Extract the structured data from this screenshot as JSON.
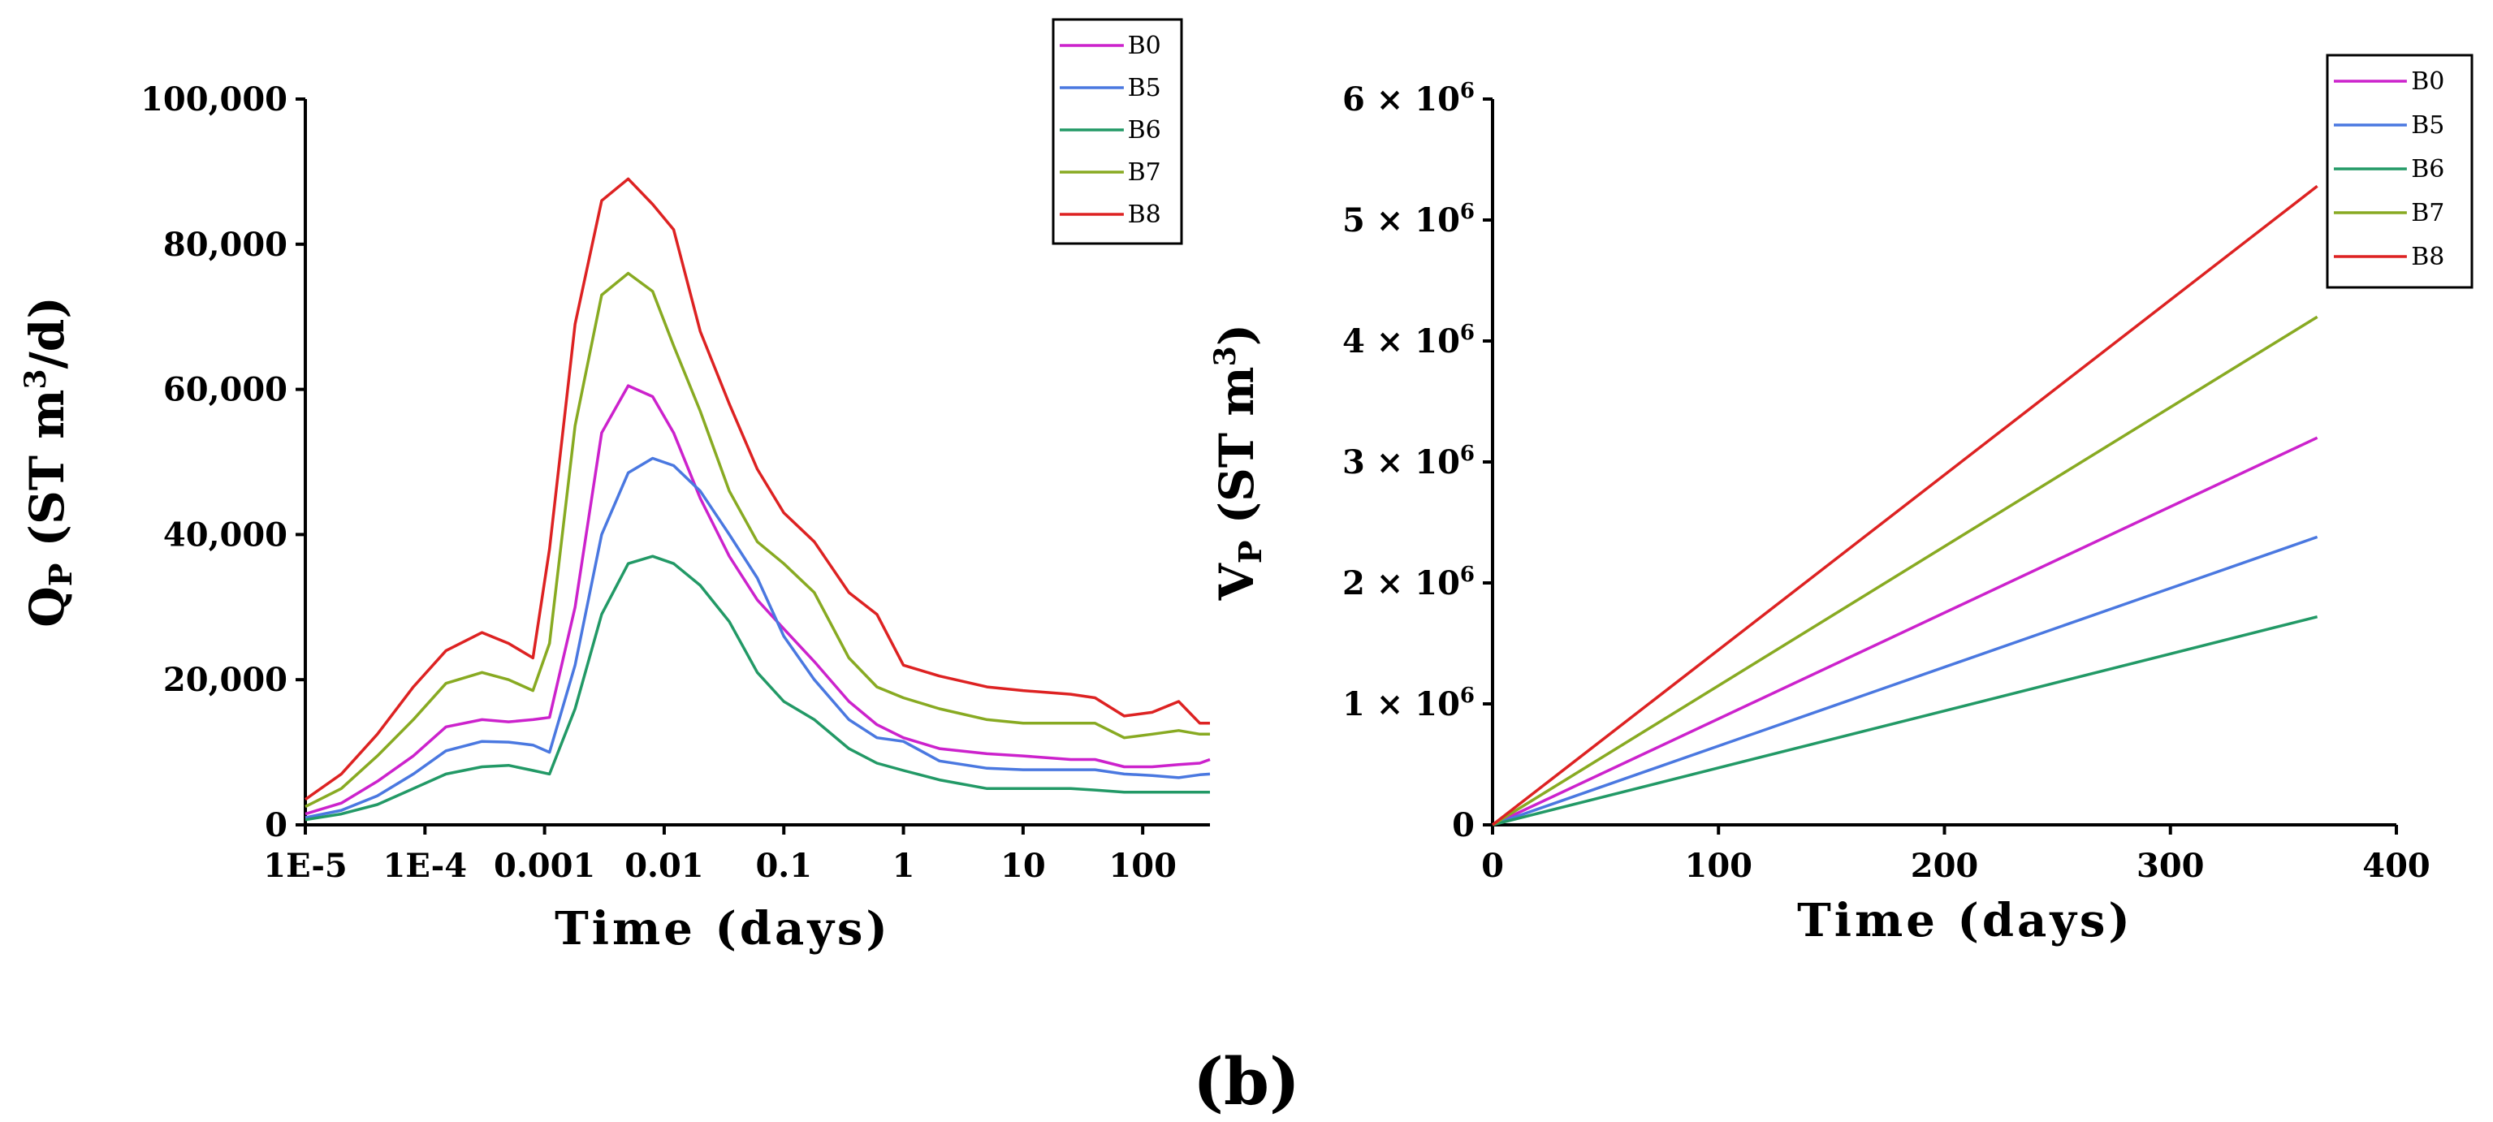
{
  "figure": {
    "caption": "(b)"
  },
  "chart_data": [
    {
      "type": "line",
      "id": "left",
      "xscale": "log",
      "x": [
        1e-05,
        2e-05,
        4e-05,
        8e-05,
        0.00015,
        0.0003,
        0.0005,
        0.0008,
        0.0011,
        0.0018,
        0.003,
        0.005,
        0.008,
        0.012,
        0.02,
        0.035,
        0.06,
        0.1,
        0.18,
        0.35,
        0.6,
        1,
        2,
        5,
        10,
        25,
        40,
        70,
        120,
        200,
        300,
        365
      ],
      "xlim": [
        1e-05,
        365
      ],
      "xticks": [
        1e-05,
        0.0001,
        0.001,
        0.01,
        0.1,
        1,
        10,
        100
      ],
      "xtick_labels": [
        "1E-5",
        "1E-4",
        "0.001",
        "0.01",
        "0.1",
        "1",
        "10",
        "100"
      ],
      "ylim": [
        0,
        100000
      ],
      "yticks": [
        0,
        20000,
        40000,
        60000,
        80000,
        100000
      ],
      "ytick_labels": [
        "0",
        "20,000",
        "40,000",
        "60,000",
        "80,000",
        "100,000"
      ],
      "ylabel": {
        "pre": "Q",
        "sub": "P",
        "mid": " (ST m",
        "sup": "3",
        "post": "/d)"
      },
      "xlabel": "Time (days)",
      "series": [
        {
          "name": "B0",
          "color": "#cc22cc",
          "values": [
            1500,
            3000,
            6000,
            9500,
            13500,
            14500,
            14200,
            14500,
            14800,
            30000,
            54000,
            60500,
            59000,
            54000,
            45000,
            37000,
            31000,
            27000,
            22500,
            17000,
            13800,
            12000,
            10500,
            9800,
            9500,
            9000,
            9000,
            8000,
            8000,
            8300,
            8500,
            9000
          ]
        },
        {
          "name": "B5",
          "color": "#4a78e0",
          "values": [
            1000,
            2000,
            4000,
            7000,
            10200,
            11500,
            11400,
            11000,
            10000,
            22000,
            40000,
            48500,
            50500,
            49500,
            46000,
            40000,
            34000,
            26000,
            20000,
            14500,
            12000,
            11500,
            8800,
            7800,
            7600,
            7600,
            7600,
            7000,
            6800,
            6500,
            6900,
            7000
          ]
        },
        {
          "name": "B6",
          "color": "#229966",
          "values": [
            700,
            1500,
            2800,
            5000,
            7000,
            8000,
            8200,
            7500,
            7000,
            16000,
            29000,
            36000,
            37000,
            36000,
            33000,
            28000,
            21000,
            17000,
            14500,
            10500,
            8500,
            7500,
            6200,
            5000,
            5000,
            5000,
            4800,
            4500,
            4500,
            4500,
            4500,
            4500
          ]
        },
        {
          "name": "B7",
          "color": "#88aa22",
          "values": [
            2500,
            5000,
            9500,
            14500,
            19500,
            21000,
            20000,
            18500,
            25000,
            55000,
            73000,
            76000,
            73500,
            66000,
            57000,
            46000,
            39000,
            36000,
            32000,
            23000,
            19000,
            17500,
            16000,
            14500,
            14000,
            14000,
            14000,
            12000,
            12500,
            13000,
            12500,
            12500
          ]
        },
        {
          "name": "B8",
          "color": "#dd2222",
          "values": [
            3500,
            7000,
            12500,
            19000,
            24000,
            26500,
            25000,
            23000,
            38000,
            69000,
            86000,
            89000,
            85500,
            82000,
            68000,
            58000,
            49000,
            43000,
            39000,
            32000,
            29000,
            22000,
            20500,
            19000,
            18500,
            18000,
            17500,
            15000,
            15500,
            17000,
            14000,
            14000
          ]
        }
      ],
      "legend": {
        "placement": "top-right",
        "entries": [
          "B0",
          "B5",
          "B6",
          "B7",
          "B8"
        ]
      }
    },
    {
      "type": "line",
      "id": "right",
      "xscale": "linear",
      "x": [
        0,
        365
      ],
      "xlim": [
        0,
        400
      ],
      "xticks": [
        0,
        100,
        200,
        300,
        400
      ],
      "xtick_labels": [
        "0",
        "100",
        "200",
        "300",
        "400"
      ],
      "ylim": [
        0,
        6000000
      ],
      "yticks": [
        0,
        1000000,
        2000000,
        3000000,
        4000000,
        5000000,
        6000000
      ],
      "ytick_labels": [
        {
          "coef": "0",
          "exp": ""
        },
        {
          "coef": "1 × 10",
          "exp": "6"
        },
        {
          "coef": "2 × 10",
          "exp": "6"
        },
        {
          "coef": "3 × 10",
          "exp": "6"
        },
        {
          "coef": "4 × 10",
          "exp": "6"
        },
        {
          "coef": "5 × 10",
          "exp": "6"
        },
        {
          "coef": "6 × 10",
          "exp": "6"
        }
      ],
      "ylabel": {
        "pre": "V",
        "sub": "P",
        "mid": " (ST m",
        "sup": "3",
        "post": ")"
      },
      "xlabel": "Time (days)",
      "series": [
        {
          "name": "B0",
          "color": "#cc22cc",
          "values": [
            0,
            3200000
          ]
        },
        {
          "name": "B5",
          "color": "#4a78e0",
          "values": [
            0,
            2380000
          ]
        },
        {
          "name": "B6",
          "color": "#229966",
          "values": [
            0,
            1720000
          ]
        },
        {
          "name": "B7",
          "color": "#88aa22",
          "values": [
            0,
            4200000
          ]
        },
        {
          "name": "B8",
          "color": "#dd2222",
          "values": [
            0,
            5280000
          ]
        }
      ],
      "legend": {
        "placement": "top-right",
        "entries": [
          "B0",
          "B5",
          "B6",
          "B7",
          "B8"
        ]
      }
    }
  ]
}
